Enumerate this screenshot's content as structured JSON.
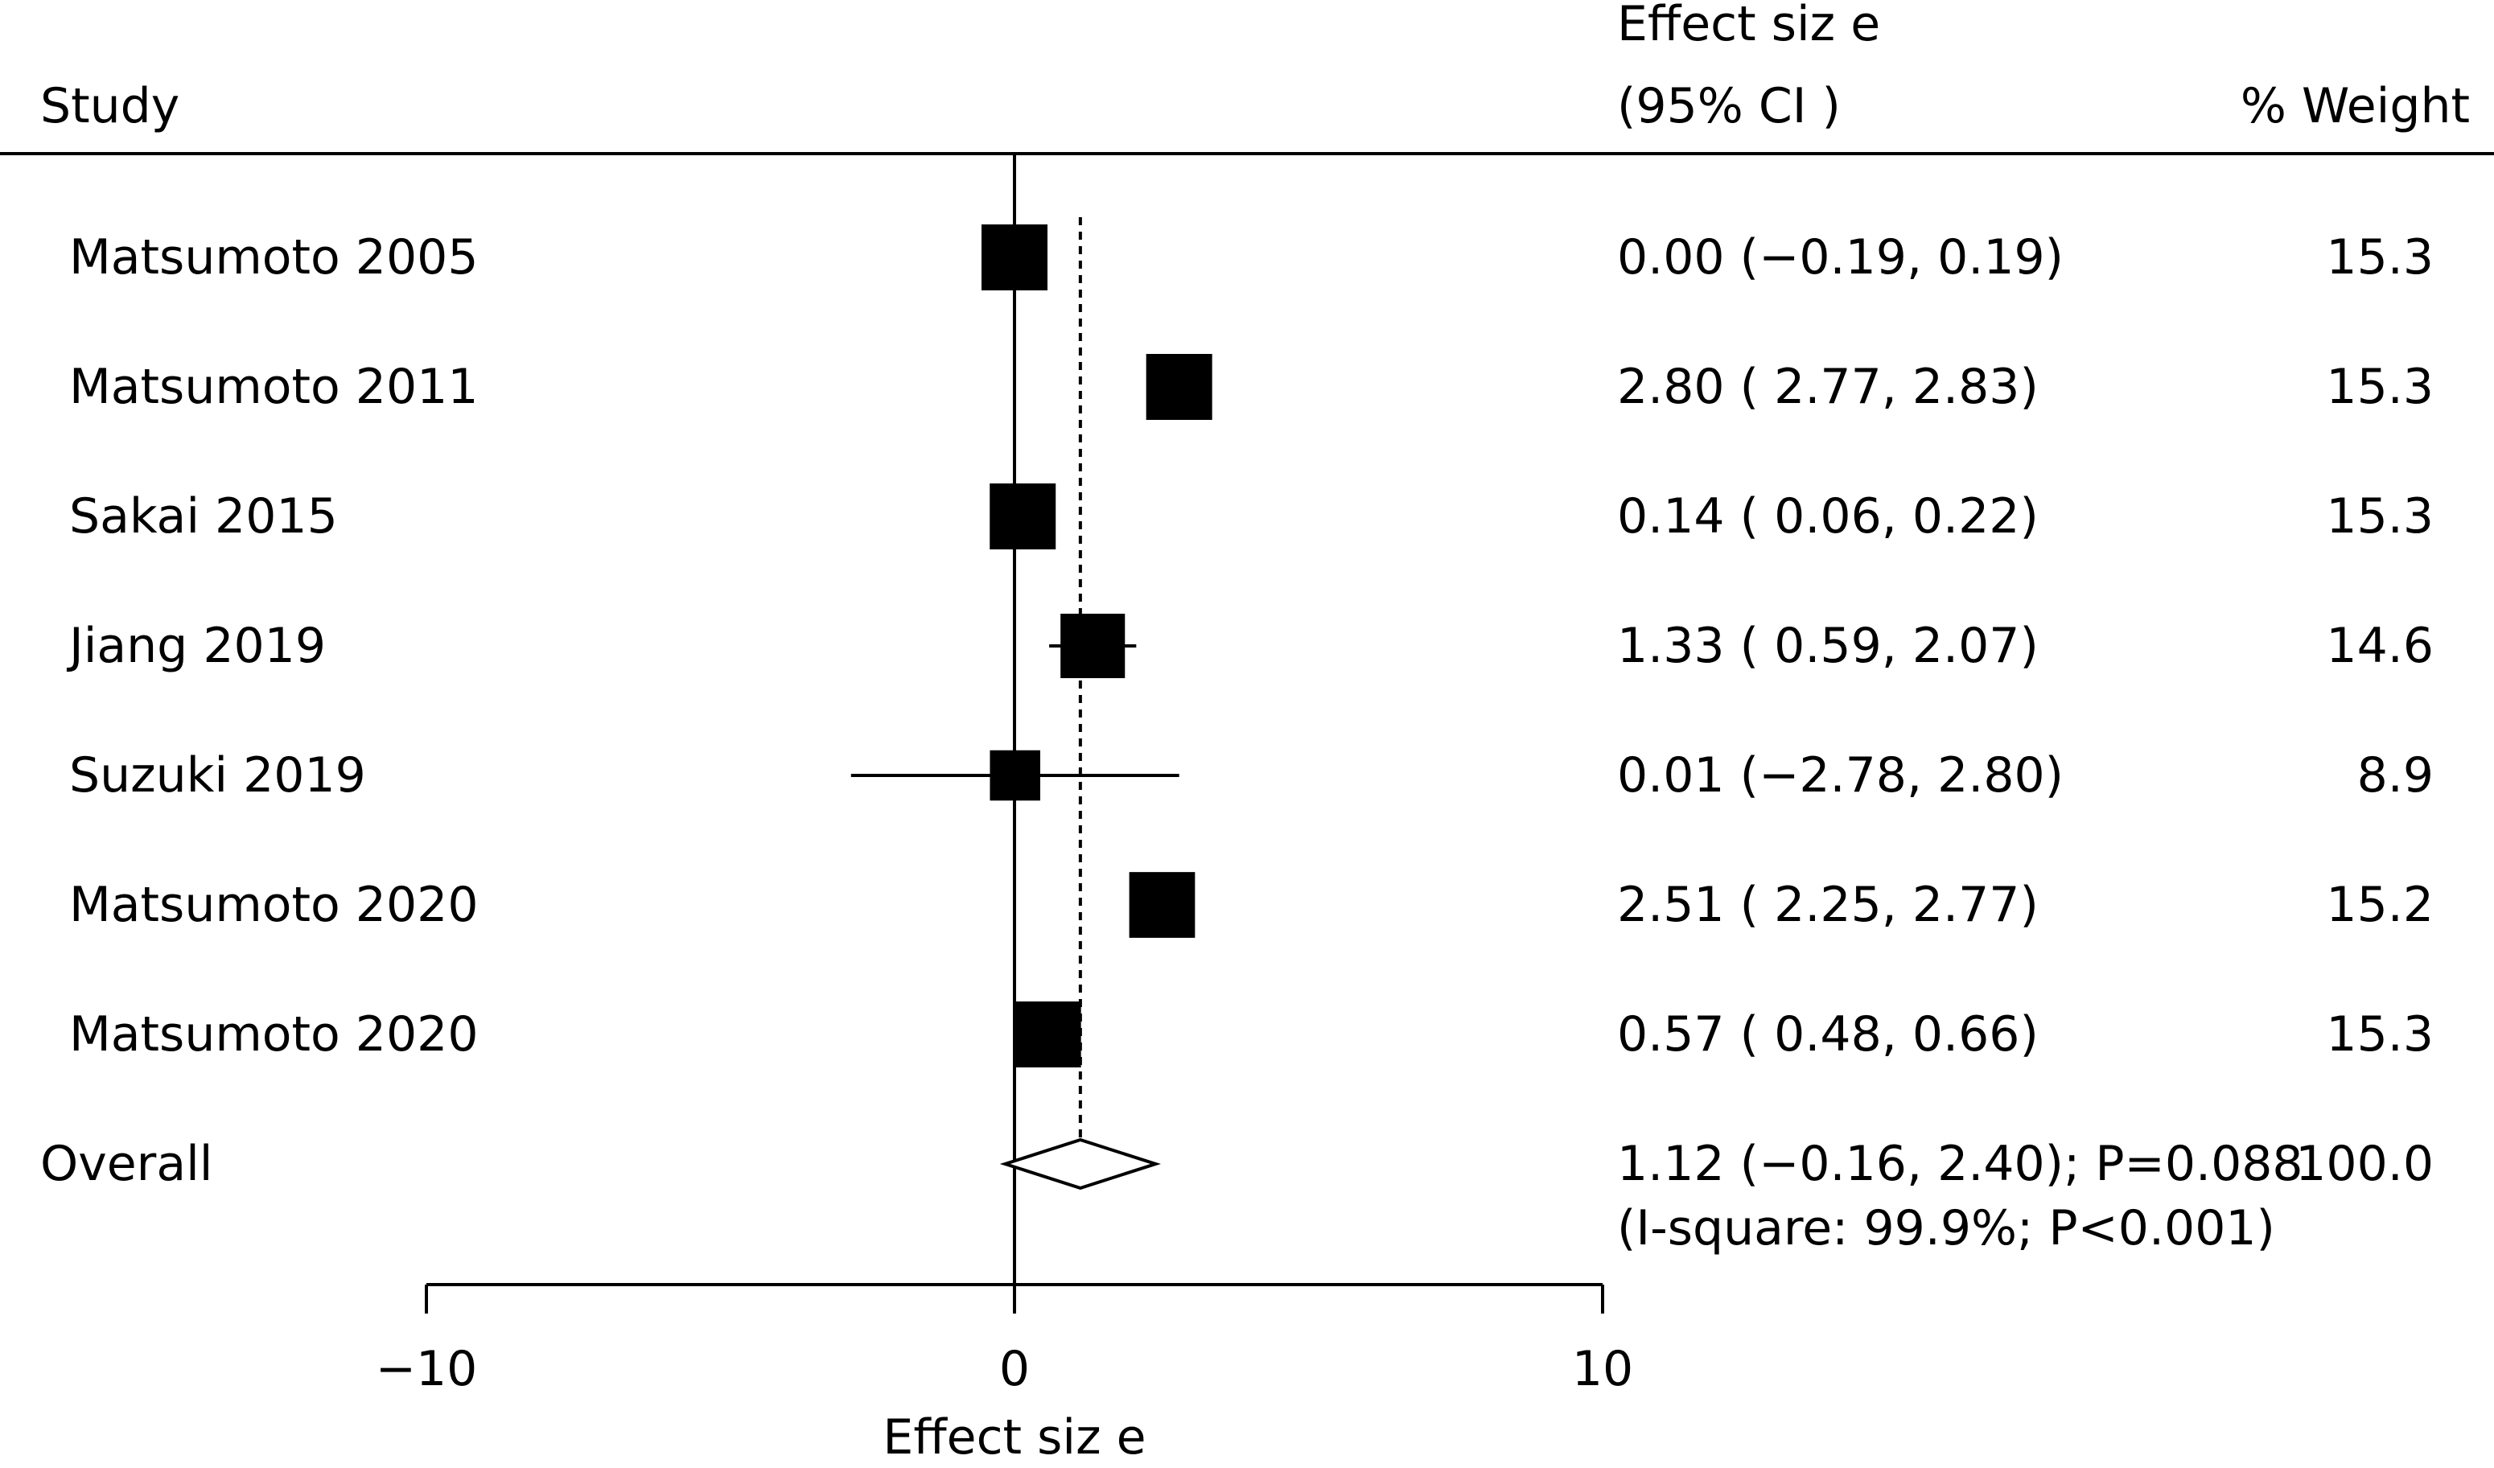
{
  "chart_data": {
    "type": "forest",
    "header": {
      "study": "Study",
      "effect_line1": "Effect siz e",
      "effect_line2": "(95% CI )",
      "weight": "% Weight"
    },
    "studies": [
      {
        "label": "Matsumoto 2005",
        "es": 0.0,
        "lo": -0.19,
        "hi": 0.19,
        "weight": 15.3,
        "ci_text": "0.00 (−0.19, 0.19)",
        "weight_text": "15.3"
      },
      {
        "label": "Matsumoto 2011",
        "es": 2.8,
        "lo": 2.77,
        "hi": 2.83,
        "weight": 15.3,
        "ci_text": "2.80 ( 2.77, 2.83)",
        "weight_text": "15.3"
      },
      {
        "label": "Sakai 2015",
        "es": 0.14,
        "lo": 0.06,
        "hi": 0.22,
        "weight": 15.3,
        "ci_text": "0.14 ( 0.06, 0.22)",
        "weight_text": "15.3"
      },
      {
        "label": "Jiang 2019",
        "es": 1.33,
        "lo": 0.59,
        "hi": 2.07,
        "weight": 14.6,
        "ci_text": "1.33 ( 0.59, 2.07)",
        "weight_text": "14.6"
      },
      {
        "label": "Suzuki 2019",
        "es": 0.01,
        "lo": -2.78,
        "hi": 2.8,
        "weight": 8.9,
        "ci_text": "0.01 (−2.78, 2.80)",
        "weight_text": "8.9"
      },
      {
        "label": "Matsumoto 2020",
        "es": 2.51,
        "lo": 2.25,
        "hi": 2.77,
        "weight": 15.2,
        "ci_text": "2.51 ( 2.25, 2.77)",
        "weight_text": "15.2"
      },
      {
        "label": "Matsumoto 2020",
        "es": 0.57,
        "lo": 0.48,
        "hi": 0.66,
        "weight": 15.3,
        "ci_text": "0.57 ( 0.48, 0.66)",
        "weight_text": "15.3"
      }
    ],
    "overall": {
      "label": "Overall",
      "es": 1.12,
      "lo": -0.16,
      "hi": 2.4,
      "ci_text": "1.12 (−0.16, 2.40); P=0.088",
      "weight_text": "100.0",
      "heterogeneity_text": "(I-square: 99.9%; P<0.001)"
    },
    "x_axis": {
      "range": [
        -10,
        10
      ],
      "ticks": [
        -10,
        0,
        10
      ],
      "tick_labels": [
        "−10",
        "0",
        "10"
      ],
      "label": "Effect siz e"
    },
    "null_line": 0,
    "reference_line": 1.12,
    "colors": {
      "ink": "#000000",
      "diamond_fill": "#ffffff",
      "background": "#ffffff"
    }
  }
}
